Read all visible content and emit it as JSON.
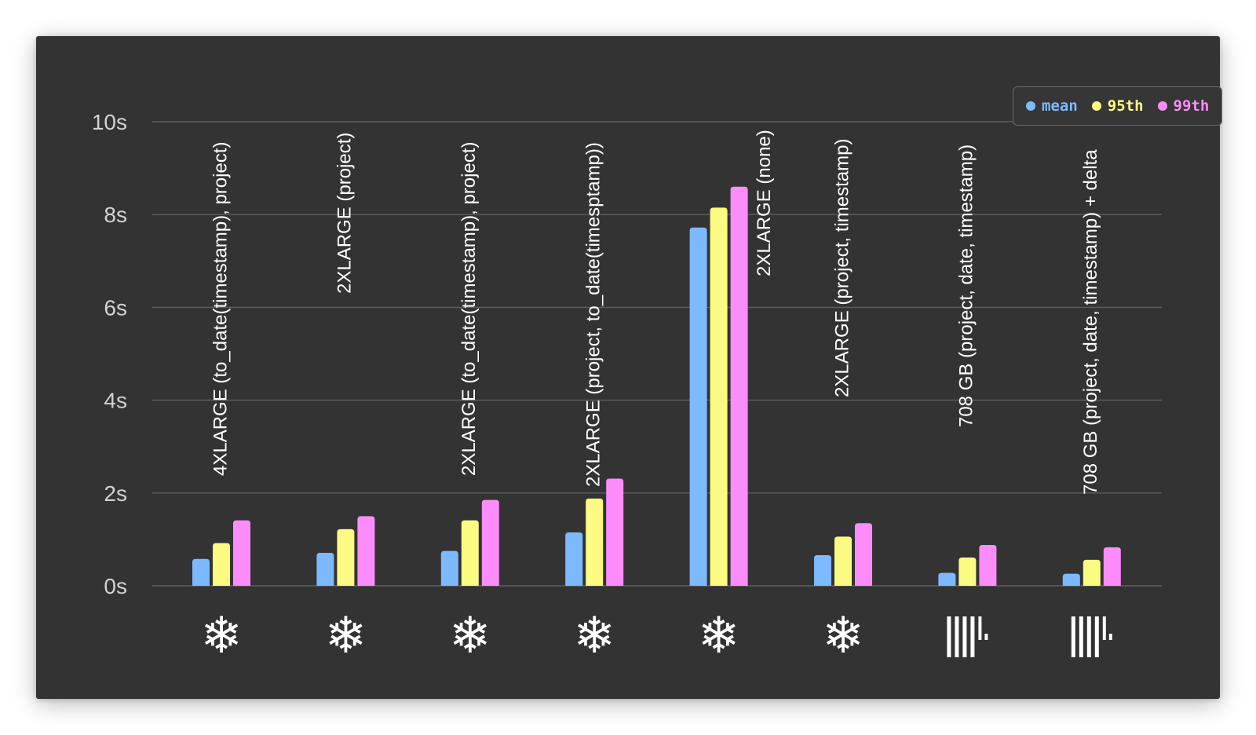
{
  "chart_data": {
    "type": "bar",
    "categories": [
      "4XLARGE (to_date(timestamp), project)",
      "2XLARGE (project)",
      "2XLARGE (to_date(timestamp), project)",
      "2XLARGE (project, to_date(timesptamp))",
      "2XLARGE (none)",
      "2XLARGE (project, timestamp)",
      "708 GB (project, date, timestamp)",
      "708 GB (project, date, timestamp) + delta"
    ],
    "category_icons": [
      "snowflake-icon",
      "snowflake-icon",
      "snowflake-icon",
      "snowflake-icon",
      "snowflake-icon",
      "snowflake-icon",
      "barcode-icon",
      "barcode-icon"
    ],
    "series": [
      {
        "name": "mean",
        "color": "#7db9ff",
        "values": [
          0.58,
          0.71,
          0.75,
          1.15,
          7.72,
          0.66,
          0.28,
          0.26
        ]
      },
      {
        "name": "95th",
        "color": "#fbfb83",
        "values": [
          0.92,
          1.22,
          1.41,
          1.88,
          8.15,
          1.06,
          0.61,
          0.56
        ]
      },
      {
        "name": "99th",
        "color": "#fc8cfa",
        "values": [
          1.41,
          1.5,
          1.85,
          2.31,
          8.6,
          1.35,
          0.88,
          0.83
        ]
      }
    ],
    "ylim": [
      0,
      10
    ],
    "yticks": [
      "0s",
      "2s",
      "4s",
      "6s",
      "8s",
      "10s"
    ],
    "grid": true,
    "legend_position": "top-right",
    "colors": {
      "background": "#333333",
      "grid": "#5e5e5e",
      "text": "#ffffff",
      "tick_text": "#d2d2d2"
    }
  }
}
